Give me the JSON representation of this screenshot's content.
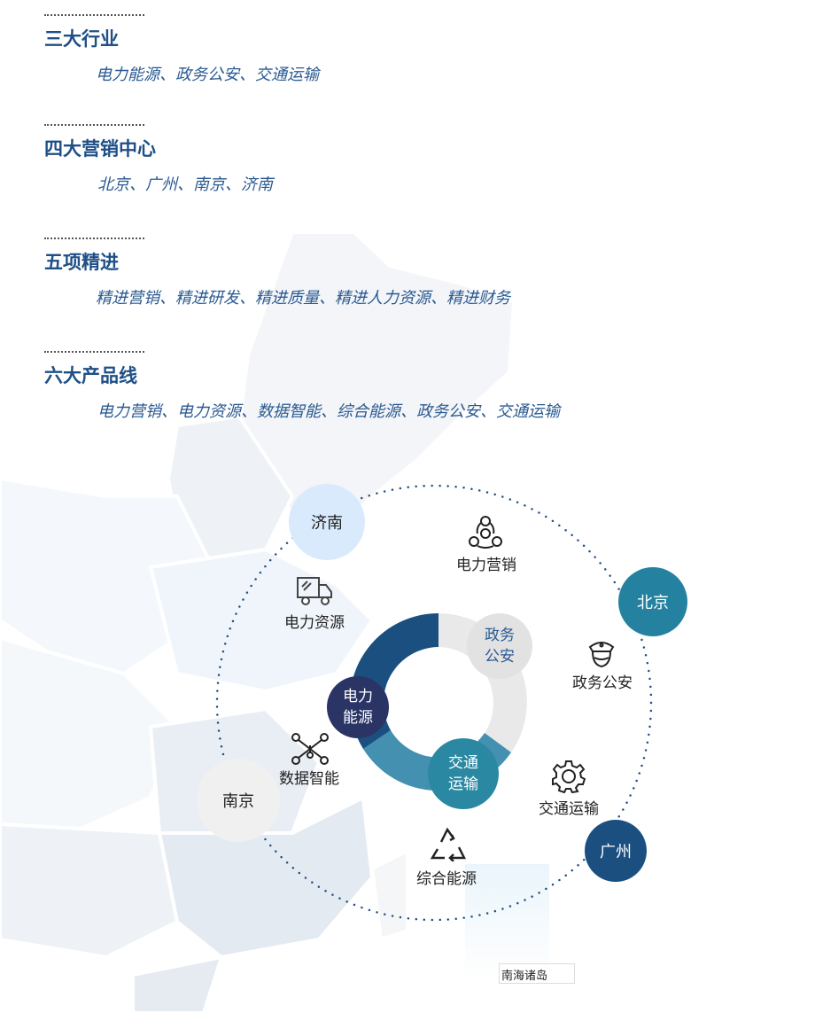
{
  "sections": [
    {
      "title": "三大行业",
      "items": "电力能源、政务公安、交通运输"
    },
    {
      "title": "四大营销中心",
      "items": "北京、广州、南京、济南"
    },
    {
      "title": "五项精进",
      "items": "精进营销、精进研发、精进质量、精进人力资源、精进财务"
    },
    {
      "title": "六大产品线",
      "items": "电力营销、电力资源、数据智能、综合能源、政务公安、交通运输"
    }
  ],
  "cities": {
    "jinan": "济南",
    "beijing": "北京",
    "guangzhou": "广州",
    "nanjing": "南京"
  },
  "products": {
    "marketing": "电力营销",
    "resources": "电力资源",
    "data": "数据智能",
    "energy": "综合能源",
    "police": "政务公安",
    "transport": "交通运输"
  },
  "industries": {
    "power": "电力能源",
    "police": "政务公安",
    "transport": "交通运输"
  },
  "industries_lines": {
    "power": [
      "电力",
      "能源"
    ],
    "police": [
      "政务",
      "公安"
    ],
    "transport": [
      "交通",
      "运输"
    ]
  },
  "inset_label": "南海诸岛",
  "colors": {
    "heading": "#1e4f86",
    "dark_blue": "#1b4f80",
    "teal": "#2482a0",
    "navy": "#2a3566",
    "light_gray": "#e9e9e9",
    "light_blue": "#d9eafc",
    "mid_teal": "#4390b0"
  }
}
